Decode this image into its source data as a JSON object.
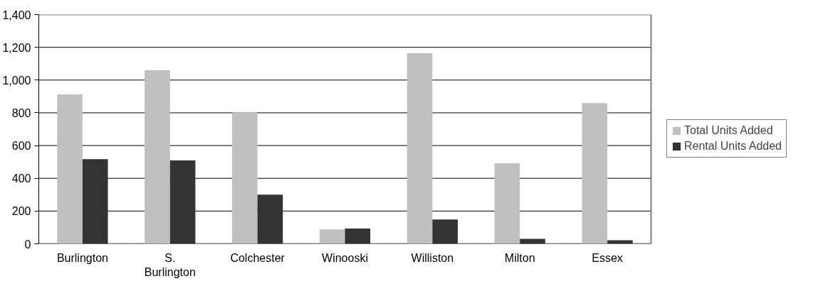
{
  "chart_data": {
    "type": "bar",
    "categories": [
      "Burlington",
      "S. Burlington",
      "Colchester",
      "Winooski",
      "Williston",
      "Milton",
      "Essex"
    ],
    "series": [
      {
        "name": "Total Units Added",
        "color": "#c0c0c0",
        "values": [
          912,
          1060,
          803,
          88,
          1164,
          492,
          859
        ]
      },
      {
        "name": "Rental Units Added",
        "color": "#333333",
        "values": [
          517,
          509,
          300,
          93,
          148,
          30,
          22
        ]
      }
    ],
    "ylim": [
      0,
      1400
    ],
    "yticks": [
      {
        "value": 0,
        "label": "0"
      },
      {
        "value": 200,
        "label": "200"
      },
      {
        "value": 400,
        "label": "400"
      },
      {
        "value": 600,
        "label": "600"
      },
      {
        "value": 800,
        "label": "800"
      },
      {
        "value": 1000,
        "label": "1,000"
      },
      {
        "value": 1200,
        "label": "1,200"
      },
      {
        "value": 1400,
        "label": "1,400"
      }
    ],
    "grid": "y",
    "legend": "right"
  }
}
